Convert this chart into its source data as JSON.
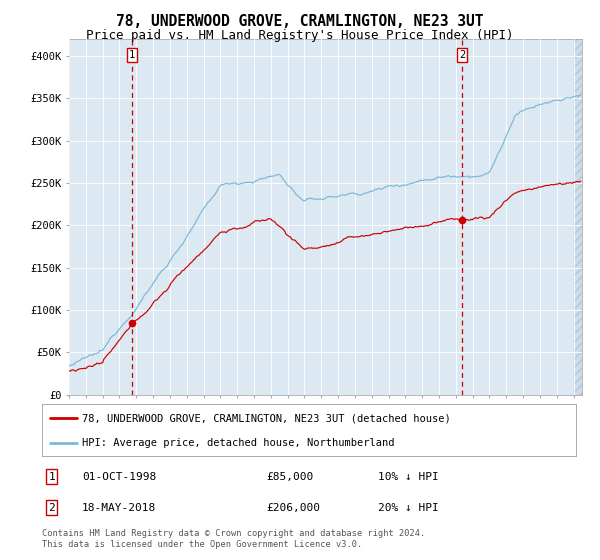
{
  "title": "78, UNDERWOOD GROVE, CRAMLINGTON, NE23 3UT",
  "subtitle": "Price paid vs. HM Land Registry's House Price Index (HPI)",
  "title_fontsize": 10.5,
  "subtitle_fontsize": 9,
  "hpi_color": "#7ab8d9",
  "price_color": "#cc0000",
  "dashed_color": "#cc0000",
  "plot_bg": "#dce8f2",
  "hatch_bg": "#c8d8e8",
  "ylim": [
    0,
    420000
  ],
  "yticks": [
    0,
    50000,
    100000,
    150000,
    200000,
    250000,
    300000,
    350000,
    400000
  ],
  "ytick_labels": [
    "£0",
    "£50K",
    "£100K",
    "£150K",
    "£200K",
    "£250K",
    "£300K",
    "£350K",
    "£400K"
  ],
  "sale1_date_num": 1998.75,
  "sale1_price": 85000,
  "sale1_label": "01-OCT-1998",
  "sale1_hpi_pct": "10% ↓ HPI",
  "sale2_date_num": 2018.37,
  "sale2_price": 206000,
  "sale2_label": "18-MAY-2018",
  "sale2_hpi_pct": "20% ↓ HPI",
  "legend_line1": "78, UNDERWOOD GROVE, CRAMLINGTON, NE23 3UT (detached house)",
  "legend_line2": "HPI: Average price, detached house, Northumberland",
  "footer": "Contains HM Land Registry data © Crown copyright and database right 2024.\nThis data is licensed under the Open Government Licence v3.0.",
  "xstart": 1995.0,
  "xend": 2025.5,
  "seed": 12345
}
